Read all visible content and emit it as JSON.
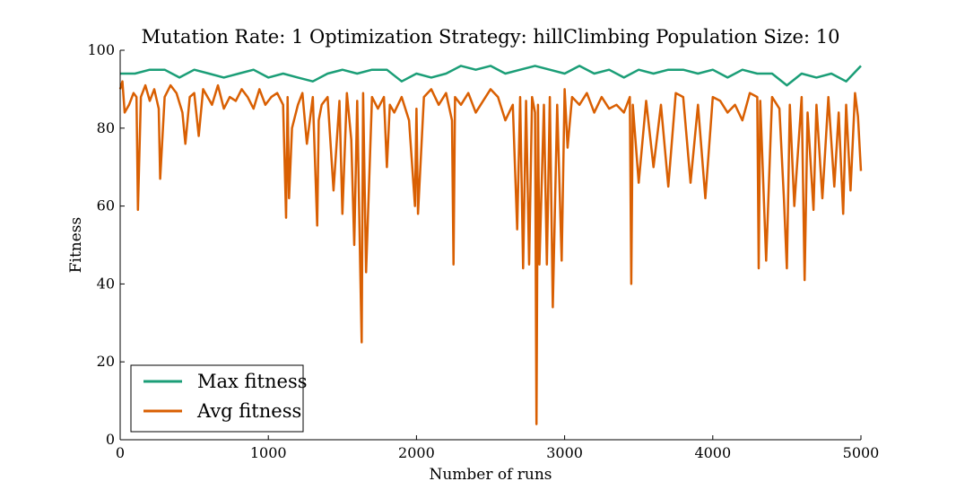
{
  "chart_data": {
    "type": "line",
    "title": "Mutation Rate: 1 Optimization Strategy: hillClimbing Population Size: 10",
    "xlabel": "Number of runs",
    "ylabel": "Fitness",
    "xlim": [
      0,
      5000
    ],
    "ylim": [
      0,
      100
    ],
    "xticks": [
      0,
      1000,
      2000,
      3000,
      4000,
      5000
    ],
    "yticks": [
      0,
      20,
      40,
      60,
      80,
      100
    ],
    "grid": false,
    "legend_position": "lower-left",
    "series": [
      {
        "name": "Max fitness",
        "color": "#1b9e77",
        "x": [
          0,
          100,
          200,
          300,
          400,
          500,
          600,
          700,
          800,
          900,
          1000,
          1100,
          1200,
          1300,
          1400,
          1500,
          1600,
          1700,
          1800,
          1900,
          2000,
          2100,
          2200,
          2300,
          2400,
          2500,
          2600,
          2700,
          2800,
          2900,
          3000,
          3100,
          3200,
          3300,
          3400,
          3500,
          3600,
          3700,
          3800,
          3900,
          4000,
          4100,
          4200,
          4300,
          4400,
          4500,
          4600,
          4700,
          4800,
          4900,
          5000
        ],
        "values": [
          94,
          94,
          95,
          95,
          93,
          95,
          94,
          93,
          94,
          95,
          93,
          94,
          93,
          92,
          94,
          95,
          94,
          95,
          95,
          92,
          94,
          93,
          94,
          96,
          95,
          96,
          94,
          95,
          96,
          95,
          94,
          96,
          94,
          95,
          93,
          95,
          94,
          95,
          95,
          94,
          95,
          93,
          95,
          94,
          94,
          91,
          94,
          93,
          94,
          92,
          96
        ]
      },
      {
        "name": "Avg fitness",
        "color": "#d95f02",
        "x": [
          0,
          15,
          30,
          60,
          90,
          110,
          120,
          140,
          170,
          200,
          230,
          260,
          270,
          300,
          340,
          380,
          420,
          440,
          470,
          500,
          530,
          560,
          590,
          620,
          660,
          700,
          740,
          780,
          820,
          860,
          900,
          940,
          980,
          1020,
          1060,
          1100,
          1120,
          1130,
          1140,
          1160,
          1200,
          1230,
          1260,
          1300,
          1330,
          1340,
          1360,
          1400,
          1440,
          1480,
          1500,
          1530,
          1560,
          1580,
          1600,
          1620,
          1630,
          1640,
          1660,
          1700,
          1740,
          1780,
          1800,
          1820,
          1850,
          1900,
          1950,
          1990,
          2000,
          2010,
          2050,
          2100,
          2150,
          2200,
          2240,
          2250,
          2260,
          2300,
          2350,
          2400,
          2450,
          2500,
          2550,
          2600,
          2650,
          2680,
          2700,
          2720,
          2740,
          2760,
          2780,
          2800,
          2810,
          2820,
          2830,
          2860,
          2880,
          2900,
          2920,
          2950,
          2980,
          3000,
          3020,
          3050,
          3100,
          3150,
          3200,
          3250,
          3300,
          3350,
          3400,
          3440,
          3450,
          3460,
          3500,
          3550,
          3600,
          3650,
          3700,
          3750,
          3800,
          3850,
          3900,
          3950,
          4000,
          4050,
          4100,
          4150,
          4200,
          4250,
          4300,
          4310,
          4320,
          4360,
          4400,
          4450,
          4480,
          4500,
          4520,
          4550,
          4600,
          4620,
          4640,
          4680,
          4700,
          4740,
          4780,
          4820,
          4850,
          4880,
          4900,
          4930,
          4960,
          4980,
          5000
        ],
        "values": [
          90,
          92,
          84,
          86,
          89,
          88,
          59,
          88,
          91,
          87,
          90,
          85,
          67,
          88,
          91,
          89,
          84,
          76,
          88,
          89,
          78,
          90,
          88,
          86,
          91,
          85,
          88,
          87,
          90,
          88,
          85,
          90,
          86,
          88,
          89,
          86,
          57,
          88,
          62,
          80,
          86,
          89,
          76,
          88,
          55,
          82,
          86,
          88,
          64,
          87,
          58,
          89,
          77,
          50,
          87,
          45,
          25,
          89,
          43,
          88,
          85,
          88,
          70,
          86,
          84,
          88,
          82,
          60,
          85,
          58,
          88,
          90,
          86,
          89,
          82,
          45,
          88,
          86,
          89,
          84,
          87,
          90,
          88,
          82,
          86,
          54,
          88,
          44,
          87,
          45,
          88,
          84,
          4,
          86,
          45,
          86,
          45,
          88,
          34,
          86,
          46,
          90,
          75,
          88,
          86,
          89,
          84,
          88,
          85,
          86,
          84,
          88,
          40,
          86,
          66,
          87,
          70,
          86,
          65,
          89,
          88,
          66,
          86,
          62,
          88,
          87,
          84,
          86,
          82,
          89,
          88,
          44,
          87,
          46,
          88,
          85,
          62,
          44,
          86,
          60,
          88,
          41,
          84,
          59,
          86,
          62,
          88,
          65,
          84,
          58,
          86,
          64,
          89,
          83,
          69
        ]
      }
    ]
  }
}
